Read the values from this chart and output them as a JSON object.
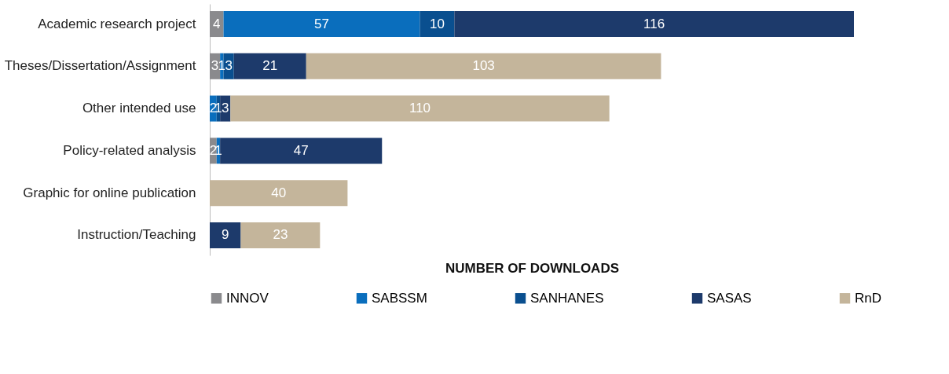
{
  "chart_data": {
    "type": "bar",
    "orientation": "horizontal",
    "stacked": true,
    "xlabel": "NUMBER OF DOWNLOADS",
    "categories": [
      "Academic research project",
      "Theses/Dissertation/Assignment",
      "Other intended use",
      "Policy-related analysis",
      "Graphic for online publication",
      "Instruction/Teaching"
    ],
    "series": [
      {
        "name": "INNOV",
        "color": "#8a8a8d",
        "values": [
          4,
          3,
          null,
          2,
          null,
          null
        ]
      },
      {
        "name": "SABSSM",
        "color": "#0a6ebd",
        "values": [
          57,
          1,
          2,
          1,
          null,
          null
        ]
      },
      {
        "name": "SANHANES",
        "color": "#0a4f8f",
        "values": [
          10,
          3,
          1,
          null,
          null,
          null
        ]
      },
      {
        "name": "SASAS",
        "color": "#1d3a6b",
        "values": [
          116,
          21,
          3,
          47,
          null,
          9
        ]
      },
      {
        "name": "RnD",
        "color": "#c4b59b",
        "values": [
          null,
          103,
          110,
          null,
          40,
          23
        ]
      }
    ],
    "xlim": [
      0,
      187
    ],
    "data_labels": true,
    "legend": "bottom",
    "grid": false,
    "tick_labels": "y"
  }
}
